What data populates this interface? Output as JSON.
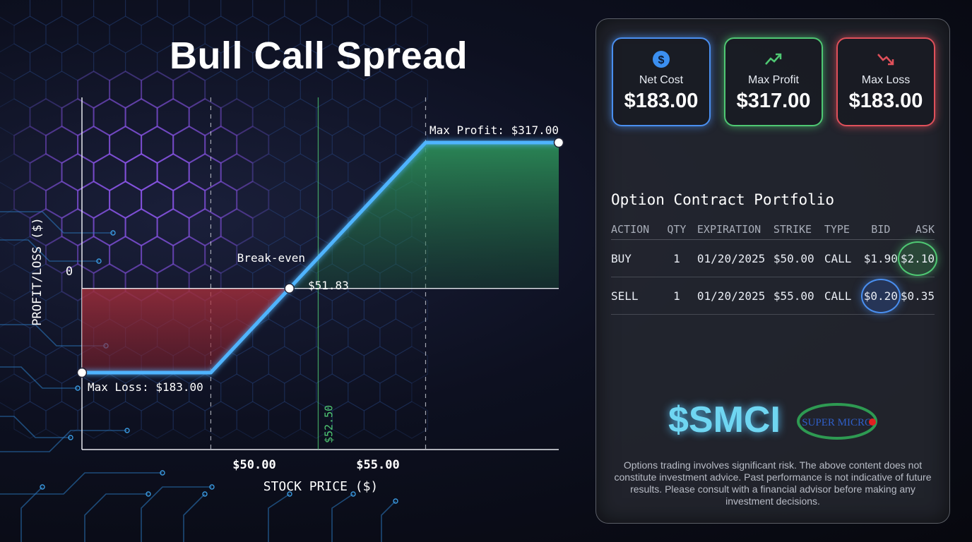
{
  "title": "Bull Call Spread",
  "colors": {
    "line": "#4fb4ff",
    "profit_fill": "#2f8a5a",
    "loss_fill": "#a8303a",
    "accent_blue": "#4a8ff0",
    "accent_green": "#4fc873",
    "accent_red": "#e0505a"
  },
  "chart_data": {
    "type": "line",
    "xlabel": "STOCK PRICE ($)",
    "ylabel": "PROFIT/LOSS ($)",
    "x": [
      47.0,
      50.0,
      51.83,
      55.0,
      58.1
    ],
    "y": [
      -183,
      -183,
      0,
      317,
      317
    ],
    "xlim": [
      47.0,
      58.1
    ],
    "ylim": [
      -183,
      317
    ],
    "x_ticks": [
      "$50.00",
      "$55.00"
    ],
    "y_tick": "0",
    "current_price": {
      "value": 52.5,
      "label": "$52.50"
    },
    "annotations": {
      "max_profit": "Max Profit: $317.00",
      "max_loss": "Max Loss: $183.00",
      "break_even_label": "Break-even",
      "break_even_value": "$51.83"
    }
  },
  "summary": {
    "net_cost": {
      "label": "Net Cost",
      "value": "$183.00",
      "icon": "dollar-coin-icon"
    },
    "max_profit": {
      "label": "Max Profit",
      "value": "$317.00",
      "icon": "trend-up-icon"
    },
    "max_loss": {
      "label": "Max Loss",
      "value": "$183.00",
      "icon": "trend-down-icon"
    }
  },
  "portfolio": {
    "title": "Option Contract Portfolio",
    "headers": [
      "ACTION",
      "QTY",
      "EXPIRATION",
      "STRIKE",
      "TYPE",
      "BID",
      "ASK"
    ],
    "rows": [
      [
        "BUY",
        "1",
        "01/20/2025",
        "$50.00",
        "CALL",
        "$1.90",
        "$2.10"
      ],
      [
        "SELL",
        "1",
        "01/20/2025",
        "$55.00",
        "CALL",
        "$0.20",
        "$0.35"
      ]
    ]
  },
  "ticker": "$SMCI",
  "logo_text": "SUPER MICRO",
  "disclaimer": "Options trading involves significant risk. The above content does not constitute investment advice. Past performance is not indicative of future results. Please consult with a financial advisor before making any investment decisions."
}
